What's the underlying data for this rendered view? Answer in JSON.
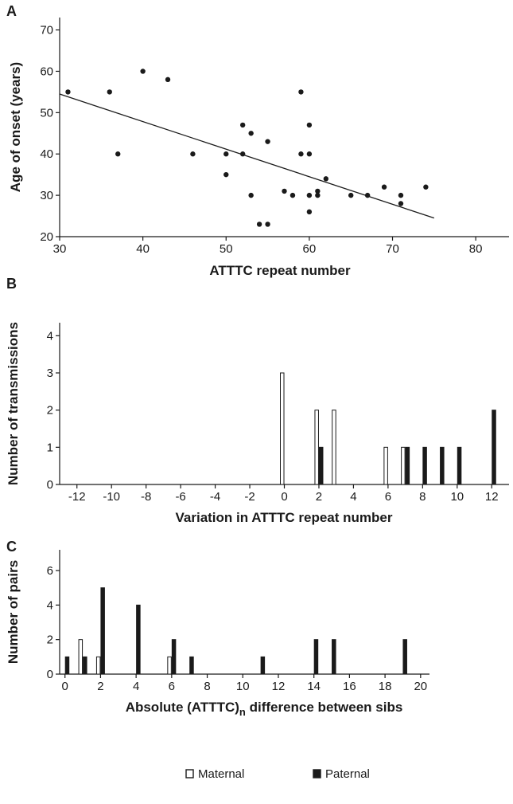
{
  "chart_data": [
    {
      "panel": "A",
      "type": "scatter",
      "xlabel": "ATTTC repeat number",
      "ylabel": "Age of onset (years)",
      "xlim": [
        30,
        84
      ],
      "ylim": [
        20,
        73
      ],
      "xticks": [
        30,
        40,
        50,
        60,
        70,
        80
      ],
      "yticks": [
        20,
        30,
        40,
        50,
        60,
        70
      ],
      "points": [
        [
          31,
          55
        ],
        [
          36,
          55
        ],
        [
          37,
          40
        ],
        [
          40,
          60
        ],
        [
          43,
          58
        ],
        [
          46,
          40
        ],
        [
          50,
          40
        ],
        [
          50,
          35
        ],
        [
          52,
          47
        ],
        [
          52,
          40
        ],
        [
          53,
          45
        ],
        [
          53,
          30
        ],
        [
          54,
          23
        ],
        [
          55,
          23
        ],
        [
          55,
          43
        ],
        [
          57,
          31
        ],
        [
          58,
          30
        ],
        [
          59,
          55
        ],
        [
          59,
          40
        ],
        [
          60,
          47
        ],
        [
          60,
          40
        ],
        [
          60,
          30
        ],
        [
          60,
          26
        ],
        [
          61,
          31
        ],
        [
          61,
          30
        ],
        [
          62,
          34
        ],
        [
          65,
          30
        ],
        [
          67,
          30
        ],
        [
          69,
          32
        ],
        [
          71,
          30
        ],
        [
          71,
          28
        ],
        [
          74,
          32
        ]
      ],
      "trendline": [
        [
          30,
          54.5
        ],
        [
          75,
          24.5
        ]
      ]
    },
    {
      "panel": "B",
      "type": "bar",
      "xlabel": "Variation in ATTTC repeat number",
      "ylabel": "Number of transmissions",
      "xlim": [
        -13,
        13
      ],
      "ylim": [
        0,
        4.35
      ],
      "xticks": [
        -12,
        -10,
        -8,
        -6,
        -4,
        -2,
        0,
        2,
        4,
        6,
        8,
        10,
        12
      ],
      "yticks": [
        0,
        1,
        2,
        3,
        4
      ],
      "series": [
        {
          "name": "Maternal",
          "x": [
            0,
            2,
            3,
            6,
            7
          ],
          "values": [
            3,
            2,
            2,
            1,
            1
          ]
        },
        {
          "name": "Paternal",
          "x": [
            2,
            7,
            8,
            9,
            10,
            12
          ],
          "values": [
            1,
            1,
            1,
            1,
            1,
            2
          ]
        }
      ]
    },
    {
      "panel": "C",
      "type": "bar",
      "xlabel": "Absolute (ATTTC)",
      "xlabel_subscript": "n",
      "xlabel_rest": " difference between sibs",
      "ylabel": "Number of pairs",
      "xlim": [
        -0.3,
        20.5
      ],
      "ylim": [
        0,
        7.2
      ],
      "xticks": [
        0,
        2,
        4,
        6,
        8,
        10,
        12,
        14,
        16,
        18,
        20
      ],
      "yticks": [
        0,
        2,
        4,
        6
      ],
      "series": [
        {
          "name": "Maternal",
          "x": [
            1,
            2,
            6
          ],
          "values": [
            2,
            1,
            1
          ]
        },
        {
          "name": "Paternal",
          "x": [
            0,
            1,
            2,
            4,
            6,
            7,
            11,
            14,
            15,
            19
          ],
          "values": [
            1,
            1,
            5,
            4,
            2,
            1,
            1,
            2,
            2,
            2
          ]
        }
      ]
    }
  ],
  "panel_letters": [
    "A",
    "B",
    "C"
  ],
  "legend": [
    {
      "label": "Maternal",
      "style": "open"
    },
    {
      "label": "Paternal",
      "style": "filled"
    }
  ],
  "colors": {
    "ink": "#1a1a1a",
    "background": "#ffffff",
    "open_fill": "#ffffff",
    "filled_fill": "#1a1a1a"
  }
}
